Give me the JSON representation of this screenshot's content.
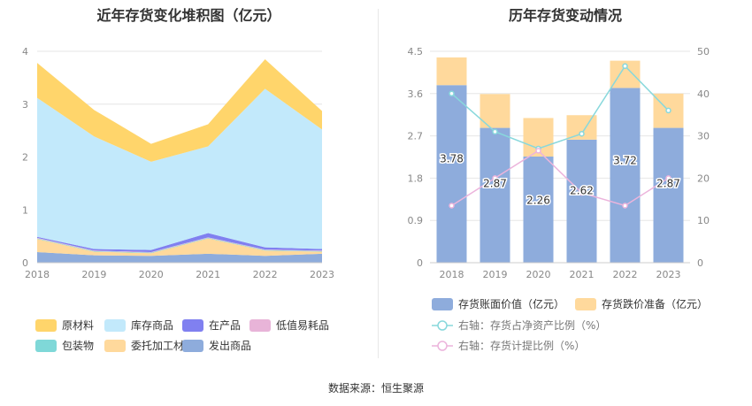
{
  "footer": {
    "source": "数据来源：恒生聚源"
  },
  "chart_data": [
    {
      "type": "area",
      "stacked": true,
      "title": "近年存货变化堆积图（亿元）",
      "categories": [
        "2018",
        "2019",
        "2020",
        "2021",
        "2022",
        "2023"
      ],
      "yticks": [
        "0",
        "1",
        "2",
        "3",
        "4"
      ],
      "ylim": [
        0,
        4
      ],
      "grid": true,
      "legend_position": "bottom",
      "series": [
        {
          "name": "发出商品",
          "color": "#8eacdc",
          "values": [
            0.2,
            0.14,
            0.13,
            0.17,
            0.13,
            0.17
          ]
        },
        {
          "name": "委托加工材料",
          "color": "#ffd99c",
          "values": [
            0.25,
            0.07,
            0.05,
            0.29,
            0.1,
            0.04
          ]
        },
        {
          "name": "包装物",
          "color": "#7fd8d8",
          "values": [
            0.01,
            0.01,
            0.01,
            0.01,
            0.01,
            0.01
          ]
        },
        {
          "name": "低值易耗品",
          "color": "#e8b4d8",
          "values": [
            0.01,
            0.01,
            0.01,
            0.01,
            0.01,
            0.01
          ]
        },
        {
          "name": "在产品",
          "color": "#8080f0",
          "values": [
            0.02,
            0.03,
            0.04,
            0.08,
            0.04,
            0.03
          ]
        },
        {
          "name": "库存商品",
          "color": "#c2e9fb",
          "values": [
            2.63,
            2.13,
            1.67,
            1.64,
            3.0,
            2.26
          ]
        },
        {
          "name": "原材料",
          "color": "#ffd56b",
          "values": [
            0.66,
            0.5,
            0.34,
            0.42,
            0.56,
            0.35
          ]
        }
      ],
      "legend_order": [
        "原材料",
        "库存商品",
        "在产品",
        "低值易耗品",
        "包装物",
        "委托加工材料",
        "发出商品"
      ]
    },
    {
      "type": "bar",
      "stacked": true,
      "title": "历年存货变动情况",
      "categories": [
        "2018",
        "2019",
        "2020",
        "2021",
        "2022",
        "2023"
      ],
      "yticks_left": [
        "0",
        "0.9",
        "1.8",
        "2.7",
        "3.6",
        "4.5"
      ],
      "ylim_left": [
        0,
        4.5
      ],
      "yticks_right": [
        "0",
        "10",
        "20",
        "30",
        "40",
        "50"
      ],
      "ylim_right": [
        0,
        50
      ],
      "grid": true,
      "legend_position": "bottom",
      "series": [
        {
          "name": "存货账面价值（亿元）",
          "color": "#8eacdc",
          "axis": "left",
          "values": [
            3.78,
            2.87,
            2.26,
            2.62,
            3.72,
            2.87
          ],
          "labels": [
            "3.78",
            "2.87",
            "2.26",
            "2.62",
            "3.72",
            "2.87"
          ]
        },
        {
          "name": "存货跌价准备（亿元）",
          "color": "#ffd99c",
          "axis": "left",
          "values": [
            0.59,
            0.72,
            0.82,
            0.52,
            0.58,
            0.73
          ]
        },
        {
          "name": "右轴：存货占净资产比例（%）",
          "color": "#88d8dc",
          "axis": "right",
          "type": "line",
          "values": [
            40.0,
            31.0,
            27.0,
            30.5,
            46.5,
            36.0
          ]
        },
        {
          "name": "右轴：存货计提比例（%）",
          "color": "#ecb4dc",
          "axis": "right",
          "type": "line",
          "values": [
            13.5,
            20.0,
            26.5,
            16.5,
            13.5,
            20.0
          ]
        }
      ]
    }
  ]
}
